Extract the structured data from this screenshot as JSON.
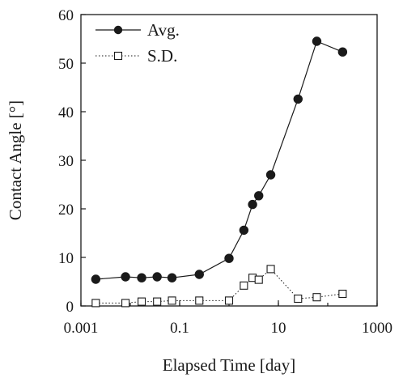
{
  "chart_data": {
    "type": "scatter",
    "xlabel": "Elapsed Time [day]",
    "ylabel": "Contact Angle  [°]",
    "x_scale": "log",
    "xlim": [
      0.001,
      1000
    ],
    "ylim": [
      0,
      60
    ],
    "x_ticks": [
      0.001,
      0.1,
      10,
      1000
    ],
    "x_tick_labels": [
      "0.001",
      "0.1",
      "10",
      "1000"
    ],
    "y_ticks": [
      0,
      10,
      20,
      30,
      40,
      50,
      60
    ],
    "y_tick_labels": [
      "0",
      "10",
      "20",
      "30",
      "40",
      "50",
      "60"
    ],
    "grid": false,
    "legend_position": "top-left",
    "series": [
      {
        "name": "Avg.",
        "marker": "filled-circle",
        "line": "solid",
        "color": "#1a1a1a",
        "x": [
          0.002,
          0.008,
          0.017,
          0.035,
          0.07,
          0.25,
          1.0,
          2.0,
          3.0,
          4.0,
          7.0,
          25.0,
          60.0,
          200.0
        ],
        "y": [
          5.5,
          6.0,
          5.8,
          6.0,
          5.8,
          6.5,
          9.8,
          15.6,
          20.9,
          22.7,
          27.0,
          42.6,
          54.5,
          52.3
        ]
      },
      {
        "name": "S.D.",
        "marker": "open-square",
        "line": "dotted",
        "color": "#1a1a1a",
        "x": [
          0.002,
          0.008,
          0.017,
          0.035,
          0.07,
          0.25,
          1.0,
          2.0,
          3.0,
          4.0,
          7.0,
          25.0,
          60.0,
          200.0
        ],
        "y": [
          0.6,
          0.6,
          0.9,
          0.9,
          1.1,
          1.1,
          1.1,
          4.2,
          5.8,
          5.4,
          7.6,
          1.5,
          1.8,
          2.5
        ]
      }
    ]
  }
}
